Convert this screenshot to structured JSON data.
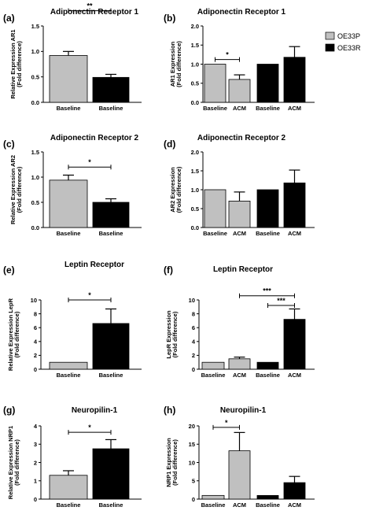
{
  "legend": {
    "items": [
      {
        "label": "OE33P",
        "color": "#c0c0c0"
      },
      {
        "label": "OE33R",
        "color": "#000000"
      }
    ],
    "placement": "top-right"
  },
  "chart_data": [
    {
      "id": "a",
      "panel_label": "(a)",
      "type": "bar",
      "title": "Adiponectin Receptor 1",
      "ylabel_lines": [
        "Relative Expression AR1",
        "(Fold difference)"
      ],
      "ylim": [
        0,
        1.5
      ],
      "yticks": [
        0,
        0.5,
        1.0,
        1.5
      ],
      "ytick_labels": [
        "0.0",
        "0.5",
        "1.0",
        "1.5"
      ],
      "bars": [
        {
          "category": "Baseline",
          "series": "OE33P",
          "value": 0.92,
          "error": 0.08
        },
        {
          "category": "Baseline",
          "series": "OE33R",
          "value": 0.49,
          "error": 0.06
        }
      ],
      "annotations": [
        {
          "text": "**",
          "from": 0,
          "to": 1,
          "y": 1.8
        }
      ]
    },
    {
      "id": "b",
      "panel_label": "(b)",
      "type": "bar",
      "title": "Adiponectin Receptor 1",
      "ylabel_lines": [
        "AR1 Expression",
        "(Fold difference)"
      ],
      "ylim": [
        0,
        2.0
      ],
      "yticks": [
        0,
        0.5,
        1.0,
        1.5,
        2.0
      ],
      "ytick_labels": [
        "0.0",
        "0.5",
        "1.0",
        "1.5",
        "2.0"
      ],
      "bars": [
        {
          "category": "Baseline",
          "series": "OE33P",
          "value": 1.0,
          "error": 0
        },
        {
          "category": "ACM",
          "series": "OE33P",
          "value": 0.6,
          "error": 0.12
        },
        {
          "category": "Baseline",
          "series": "OE33R",
          "value": 1.0,
          "error": 0
        },
        {
          "category": "ACM",
          "series": "OE33R",
          "value": 1.18,
          "error": 0.28
        }
      ],
      "annotations": [
        {
          "text": "*",
          "from": 0,
          "to": 1,
          "y": 1.12
        }
      ]
    },
    {
      "id": "c",
      "panel_label": "(c)",
      "type": "bar",
      "title": "Adiponectin Receptor 2",
      "ylabel_lines": [
        "Relative Expression AR2",
        "(Fold difference)"
      ],
      "ylim": [
        0,
        1.5
      ],
      "yticks": [
        0,
        0.5,
        1.0,
        1.5
      ],
      "ytick_labels": [
        "0.0",
        "0.5",
        "1.0",
        "1.5"
      ],
      "bars": [
        {
          "category": "Baseline",
          "series": "OE33P",
          "value": 0.94,
          "error": 0.1
        },
        {
          "category": "Baseline",
          "series": "OE33R",
          "value": 0.5,
          "error": 0.07
        }
      ],
      "annotations": [
        {
          "text": "*",
          "from": 0,
          "to": 1,
          "y": 1.2
        }
      ]
    },
    {
      "id": "d",
      "panel_label": "(d)",
      "type": "bar",
      "title": "Adiponectin Receptor 2",
      "ylabel_lines": [
        "AR2 Expression",
        "(Fold difference)"
      ],
      "ylim": [
        0,
        2.0
      ],
      "yticks": [
        0,
        0.5,
        1.0,
        1.5,
        2.0
      ],
      "ytick_labels": [
        "0.0",
        "0.5",
        "1.0",
        "1.5",
        "2.0"
      ],
      "bars": [
        {
          "category": "Baseline",
          "series": "OE33P",
          "value": 1.0,
          "error": 0
        },
        {
          "category": "ACM",
          "series": "OE33P",
          "value": 0.7,
          "error": 0.24
        },
        {
          "category": "Baseline",
          "series": "OE33R",
          "value": 1.0,
          "error": 0
        },
        {
          "category": "ACM",
          "series": "OE33R",
          "value": 1.18,
          "error": 0.34
        }
      ],
      "annotations": []
    },
    {
      "id": "e",
      "panel_label": "(e)",
      "type": "bar",
      "title": "Leptin Receptor",
      "ylabel_lines": [
        "Relative Expression LepR",
        "(Fold difference)"
      ],
      "ylim": [
        0,
        10
      ],
      "yticks": [
        0,
        2,
        4,
        6,
        8,
        10
      ],
      "ytick_labels": [
        "0",
        "2",
        "4",
        "6",
        "8",
        "10"
      ],
      "bars": [
        {
          "category": "Baseline",
          "series": "OE33P",
          "value": 1.0,
          "error": 0
        },
        {
          "category": "Baseline",
          "series": "OE33R",
          "value": 6.6,
          "error": 2.1
        }
      ],
      "annotations": [
        {
          "text": "*",
          "from": 0,
          "to": 1,
          "y": 10
        }
      ]
    },
    {
      "id": "f",
      "panel_label": "(f)",
      "type": "bar",
      "title": "Leptin Receptor",
      "ylabel_lines": [
        "LepR Expression",
        "(Fold difference)"
      ],
      "ylim": [
        0,
        10
      ],
      "yticks": [
        0,
        2,
        4,
        6,
        8,
        10
      ],
      "ytick_labels": [
        "0",
        "2",
        "4",
        "6",
        "8",
        "10"
      ],
      "bars": [
        {
          "category": "Baseline",
          "series": "OE33P",
          "value": 1.0,
          "error": 0
        },
        {
          "category": "ACM",
          "series": "OE33P",
          "value": 1.5,
          "error": 0.25
        },
        {
          "category": "Baseline",
          "series": "OE33R",
          "value": 1.0,
          "error": 0
        },
        {
          "category": "ACM",
          "series": "OE33R",
          "value": 7.2,
          "error": 1.5
        }
      ],
      "annotations": [
        {
          "text": "***",
          "from": 1,
          "to": 3,
          "y": 10.6
        },
        {
          "text": "***",
          "from": 2,
          "to": 3,
          "y": 9.2
        }
      ]
    },
    {
      "id": "g",
      "panel_label": "(g)",
      "type": "bar",
      "title": "Neuropilin-1",
      "ylabel_lines": [
        "Relative Expression NRP1",
        "(Fold difference)"
      ],
      "ylim": [
        0,
        4
      ],
      "yticks": [
        0,
        1,
        2,
        3,
        4
      ],
      "ytick_labels": [
        "0",
        "1",
        "2",
        "3",
        "4"
      ],
      "bars": [
        {
          "category": "Baseline",
          "series": "OE33P",
          "value": 1.3,
          "error": 0.25
        },
        {
          "category": "Baseline",
          "series": "OE33R",
          "value": 2.75,
          "error": 0.5
        }
      ],
      "annotations": [
        {
          "text": "*",
          "from": 0,
          "to": 1,
          "y": 3.65
        }
      ]
    },
    {
      "id": "h",
      "panel_label": "(h)",
      "type": "bar",
      "title": "Neuropilin-1",
      "ylabel_lines": [
        "NRP1 Expression",
        "(Fold difference)"
      ],
      "ylim": [
        0,
        20
      ],
      "yticks": [
        0,
        5,
        10,
        15,
        20
      ],
      "ytick_labels": [
        "0",
        "5",
        "10",
        "15",
        "20"
      ],
      "bars": [
        {
          "category": "Baseline",
          "series": "OE33P",
          "value": 1.0,
          "error": 0
        },
        {
          "category": "ACM",
          "series": "OE33P",
          "value": 13.2,
          "error": 5.0
        },
        {
          "category": "Baseline",
          "series": "OE33R",
          "value": 1.0,
          "error": 0
        },
        {
          "category": "ACM",
          "series": "OE33R",
          "value": 4.5,
          "error": 1.7
        }
      ],
      "annotations": [
        {
          "text": "*",
          "from": 0,
          "to": 1,
          "y": 19.6
        }
      ]
    }
  ]
}
